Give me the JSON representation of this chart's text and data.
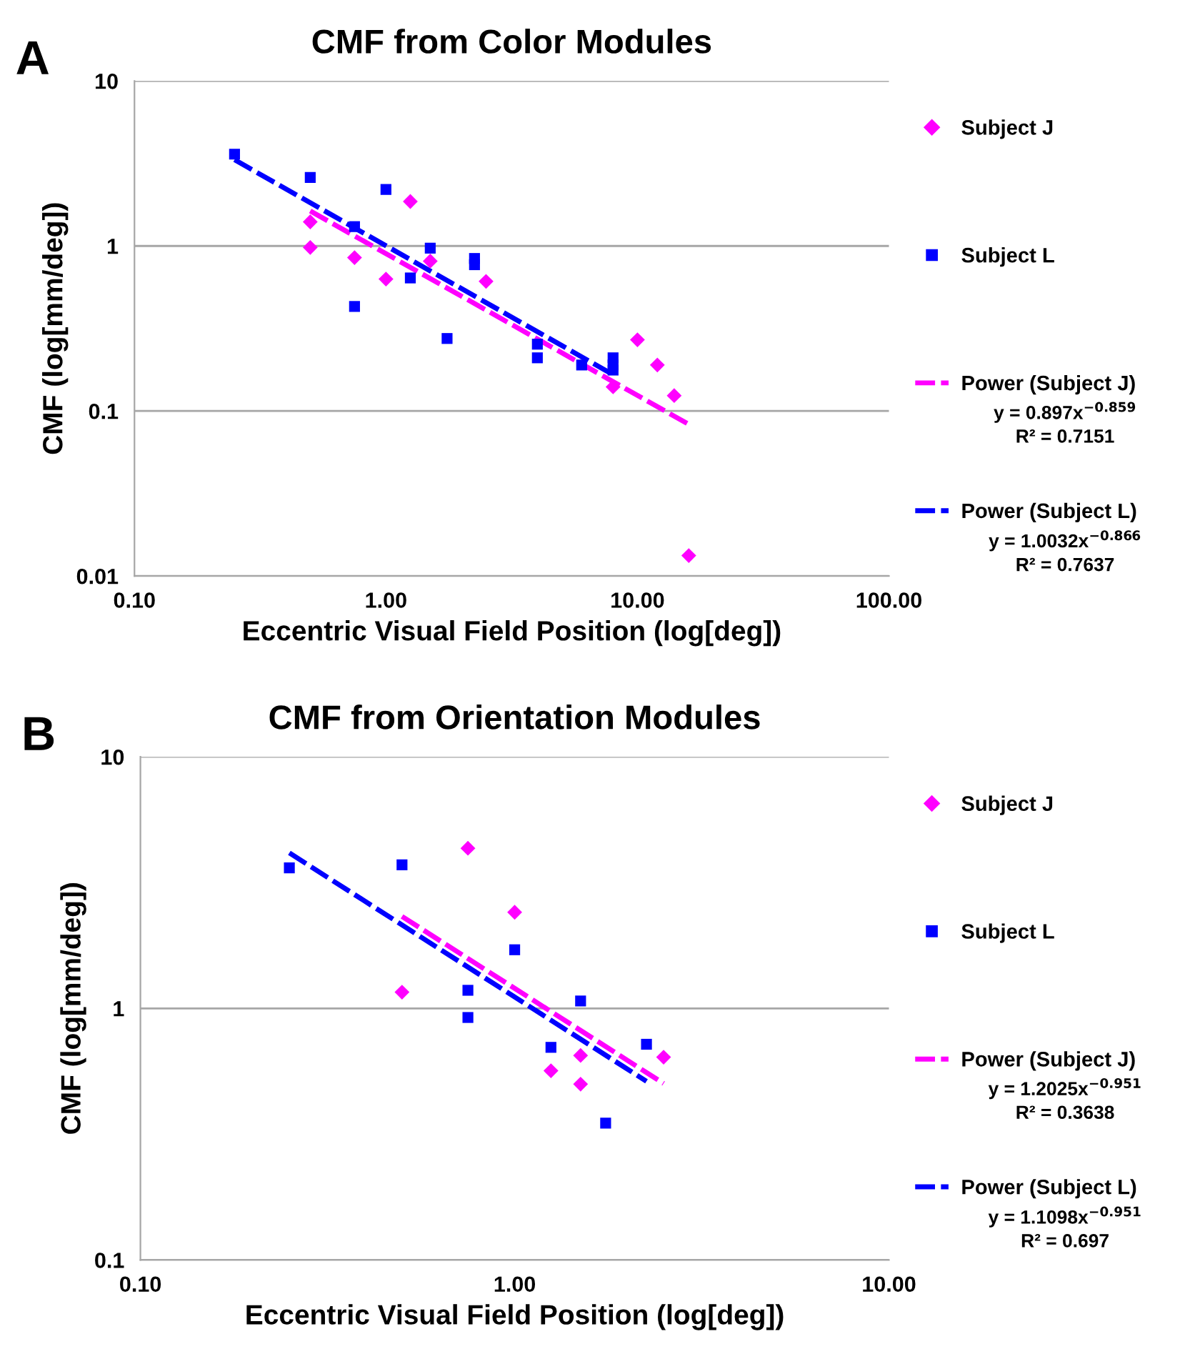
{
  "chart_data": [
    {
      "type": "scatter",
      "title": "CMF from Color Modules",
      "xlabel": "Eccentric Visual Field Position (log[deg])",
      "ylabel": "CMF (log[mm/deg])",
      "log": "xy",
      "xlim": [
        0.1,
        100
      ],
      "xticks": [
        {
          "value": 0.1,
          "label": "0.10"
        },
        {
          "value": 1,
          "label": "1.00"
        },
        {
          "value": 10,
          "label": "10.00"
        },
        {
          "value": 100,
          "label": "100.00"
        }
      ],
      "ylim": [
        0.01,
        10
      ],
      "yticks": [
        0.01,
        0.1,
        1,
        10
      ],
      "grid": "y",
      "legend": "right",
      "annotations": [
        "A",
        "y = 0.897x$^{−0.859}$",
        "R² = 0.7151",
        "y = 1.0032x$^{−0.866}$",
        "R² = 0.7637"
      ],
      "series": [
        {
          "name": "Subject J",
          "color": "#ff00ff",
          "marker": "diamond",
          "x": [
            0.5,
            0.5,
            0.75,
            1.25,
            1,
            1.5,
            2.5,
            8,
            10,
            12,
            14,
            16
          ],
          "values": [
            1.4,
            0.98,
            0.85,
            1.86,
            0.63,
            0.81,
            0.61,
            0.14,
            0.27,
            0.19,
            0.124,
            0.0133
          ]
        },
        {
          "name": "Subject L",
          "color": "#0000ff",
          "marker": "square",
          "x": [
            0.25,
            0.5,
            0.75,
            0.75,
            1,
            1.25,
            1.5,
            1.75,
            2.25,
            2.25,
            4,
            4,
            6,
            8,
            8,
            8
          ],
          "values": [
            3.6,
            2.6,
            1.31,
            0.43,
            2.2,
            0.64,
            0.97,
            0.275,
            0.84,
            0.77,
            0.254,
            0.21,
            0.19,
            0.21,
            0.19,
            0.177
          ]
        },
        {
          "name": "Power (Subject J)",
          "type": "line",
          "color": "#ff00ff",
          "line_style": "dashed",
          "x": [
            0.5,
            16
          ],
          "values": [
            1.63,
            0.083
          ]
        },
        {
          "name": "Power (Subject L)",
          "type": "line",
          "color": "#0000ff",
          "line_style": "dashed",
          "x": [
            0.25,
            8
          ],
          "values": [
            3.33,
            0.166
          ]
        }
      ]
    },
    {
      "type": "scatter",
      "title": "CMF from Orientation Modules",
      "xlabel": "Eccentric Visual Field Position (log[deg])",
      "ylabel": "CMF (log[mm/deg])",
      "log": "xy",
      "xlim": [
        0.1,
        10
      ],
      "xticks": [
        {
          "value": 0.1,
          "label": "0.10"
        },
        {
          "value": 1,
          "label": "1.00"
        },
        {
          "value": 10,
          "label": "10.00"
        }
      ],
      "ylim": [
        0.1,
        10
      ],
      "yticks": [
        0.1,
        1,
        10
      ],
      "grid": "y",
      "legend": "right",
      "annotations": [
        "B",
        "y = 1.2025x$^{−0.951}$",
        "R² = 0.3638",
        "y = 1.1098x$^{−0.951}$",
        "R² = 0.697"
      ],
      "series": [
        {
          "name": "Subject J",
          "color": "#ff00ff",
          "marker": "diamond",
          "x": [
            0.75,
            0.5,
            1,
            1.25,
            1.5,
            1.5,
            2.5
          ],
          "values": [
            4.33,
            1.16,
            2.41,
            0.565,
            0.65,
            0.5,
            0.64
          ]
        },
        {
          "name": "Subject L",
          "color": "#0000ff",
          "marker": "square",
          "x": [
            0.25,
            0.5,
            0.75,
            0.75,
            1,
            1.25,
            1.5,
            1.75,
            2.25
          ],
          "values": [
            3.62,
            3.72,
            1.18,
            0.92,
            1.71,
            0.7,
            1.07,
            0.35,
            0.72
          ]
        },
        {
          "name": "Power (Subject J)",
          "type": "line",
          "color": "#ff00ff",
          "line_style": "dashed",
          "x": [
            0.5,
            2.5
          ],
          "values": [
            2.32,
            0.503
          ]
        },
        {
          "name": "Power (Subject L)",
          "type": "line",
          "color": "#0000ff",
          "line_style": "dashed",
          "x": [
            0.25,
            2.25
          ],
          "values": [
            4.15,
            0.513
          ]
        }
      ]
    }
  ]
}
